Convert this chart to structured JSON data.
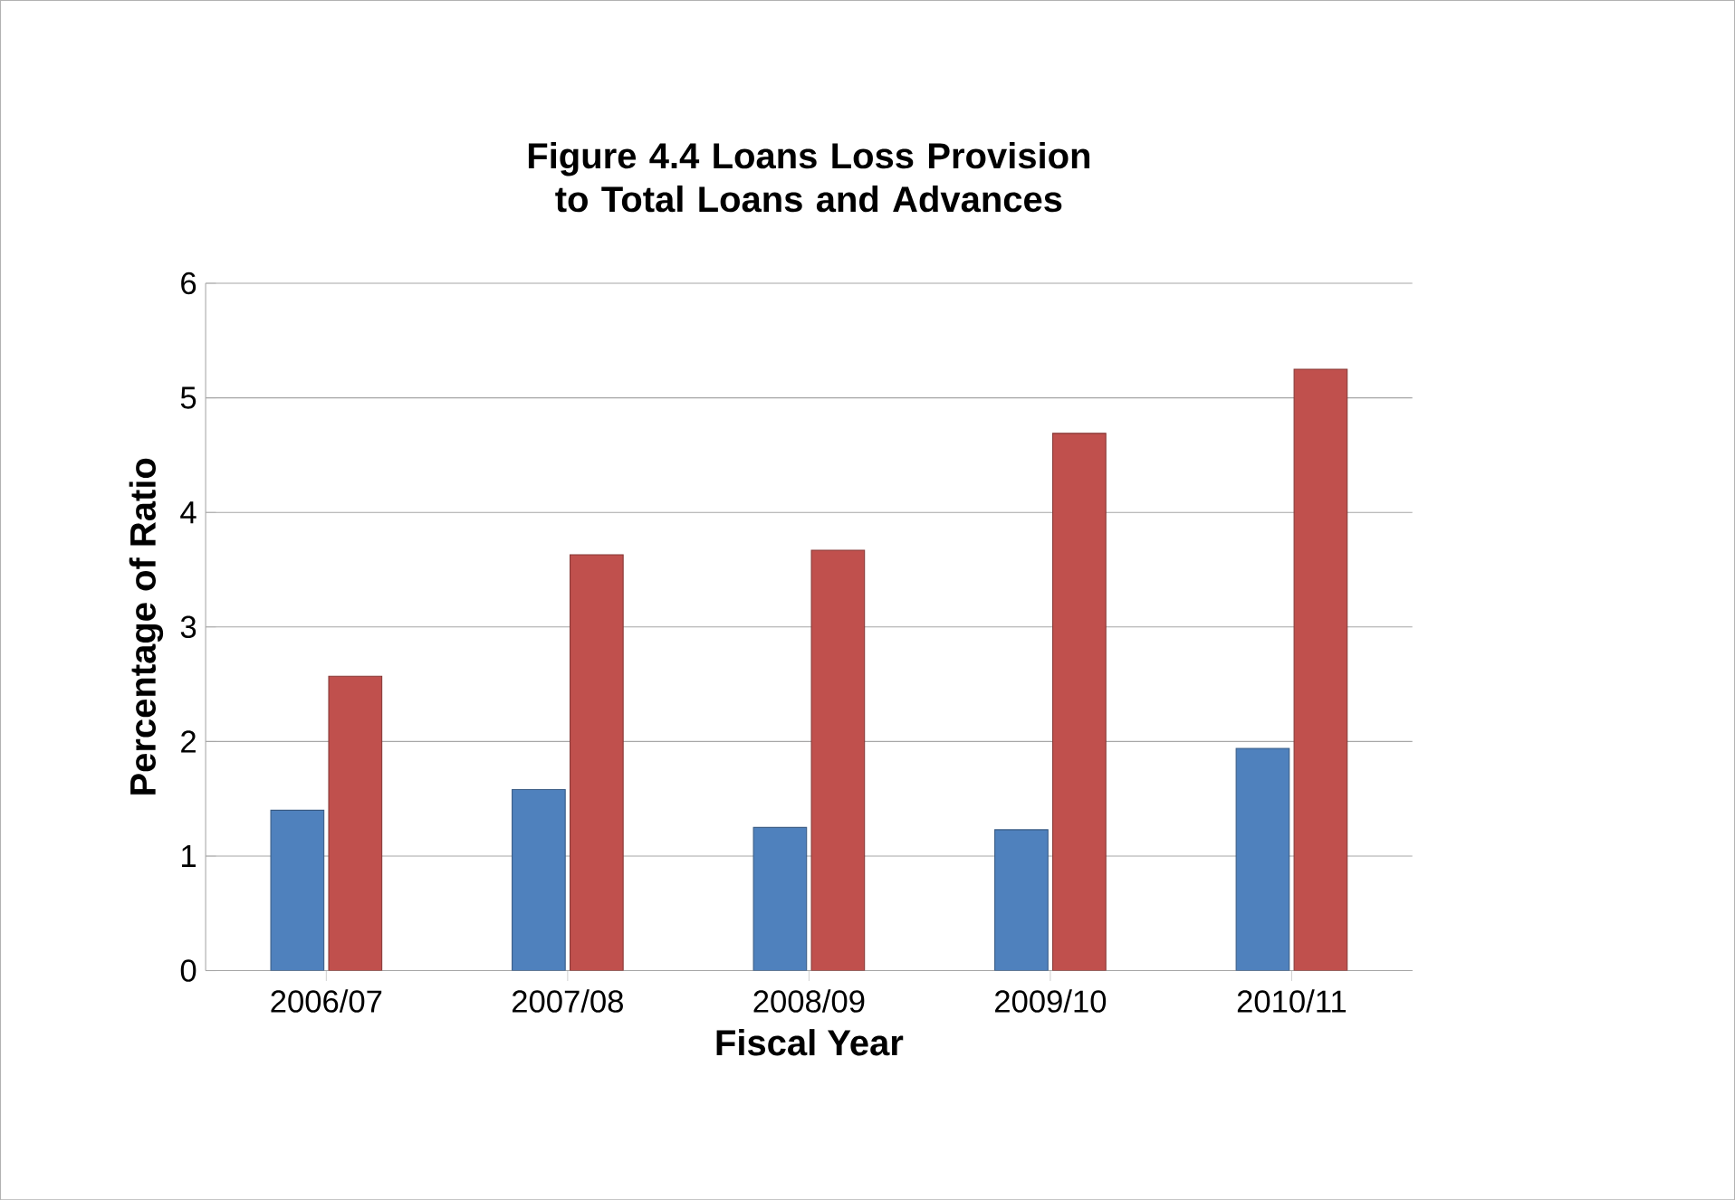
{
  "chart_data": {
    "type": "bar",
    "title": "Figure 4.4 Loans Loss Provision to Total Loans and Advances",
    "xlabel": "Fiscal Year",
    "ylabel": "Percentage of Ratio",
    "categories": [
      "2006/07",
      "2007/08",
      "2008/09",
      "2009/10",
      "2010/11"
    ],
    "series": [
      {
        "color": "#4f81bd",
        "values": [
          1.4,
          1.58,
          1.25,
          1.23,
          1.94
        ]
      },
      {
        "color": "#c0504d",
        "values": [
          2.57,
          3.63,
          3.67,
          4.69,
          5.25
        ]
      }
    ],
    "ylim": [
      0,
      6
    ],
    "yticks": [
      0,
      1,
      2,
      3,
      4,
      5,
      6
    ],
    "grid": "y"
  }
}
